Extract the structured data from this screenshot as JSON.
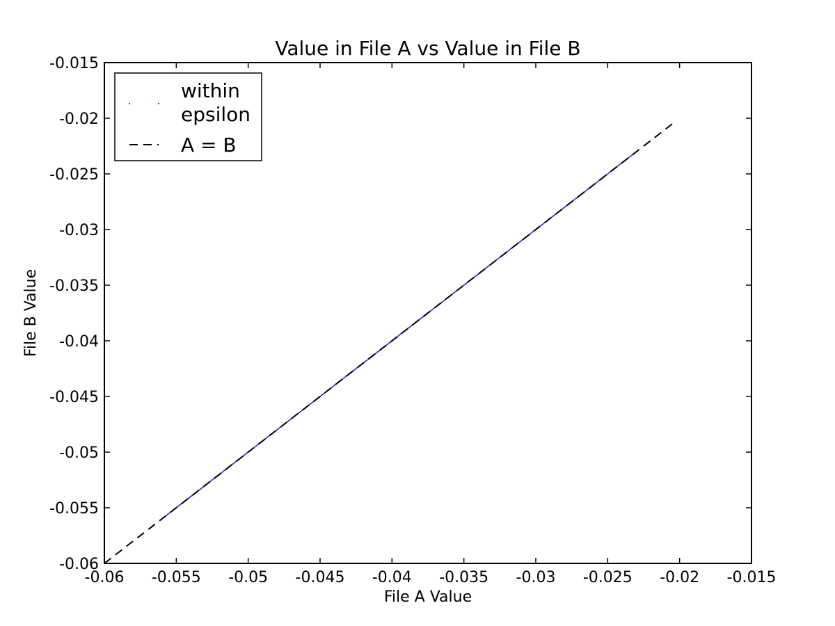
{
  "chart_data": {
    "type": "scatter",
    "title": "Value in File A vs Value in File B",
    "xlabel": "File A Value",
    "ylabel": "File B Value",
    "xlim": [
      -0.06,
      -0.015
    ],
    "ylim": [
      -0.06,
      -0.015
    ],
    "x_ticks": [
      "-0.06",
      "-0.055",
      "-0.05",
      "-0.045",
      "-0.04",
      "-0.035",
      "-0.03",
      "-0.025",
      "-0.02",
      "-0.015"
    ],
    "y_ticks": [
      "-0.015",
      "-0.02",
      "-0.025",
      "-0.03",
      "-0.035",
      "-0.04",
      "-0.045",
      "-0.05",
      "-0.055",
      "-0.06"
    ],
    "grid": false,
    "legend_position": "top-left",
    "series": [
      {
        "name": "within epsilon",
        "legend_lines": [
          "within",
          "epsilon"
        ],
        "kind": "points",
        "color": "#0000ff",
        "x_range": [
          -0.0557,
          -0.0233
        ],
        "note_points_along_identity": true
      },
      {
        "name": "A = B",
        "kind": "dashed-line",
        "color": "#000000",
        "x": [
          -0.06,
          -0.0203
        ],
        "y": [
          -0.06,
          -0.0203
        ]
      }
    ]
  }
}
